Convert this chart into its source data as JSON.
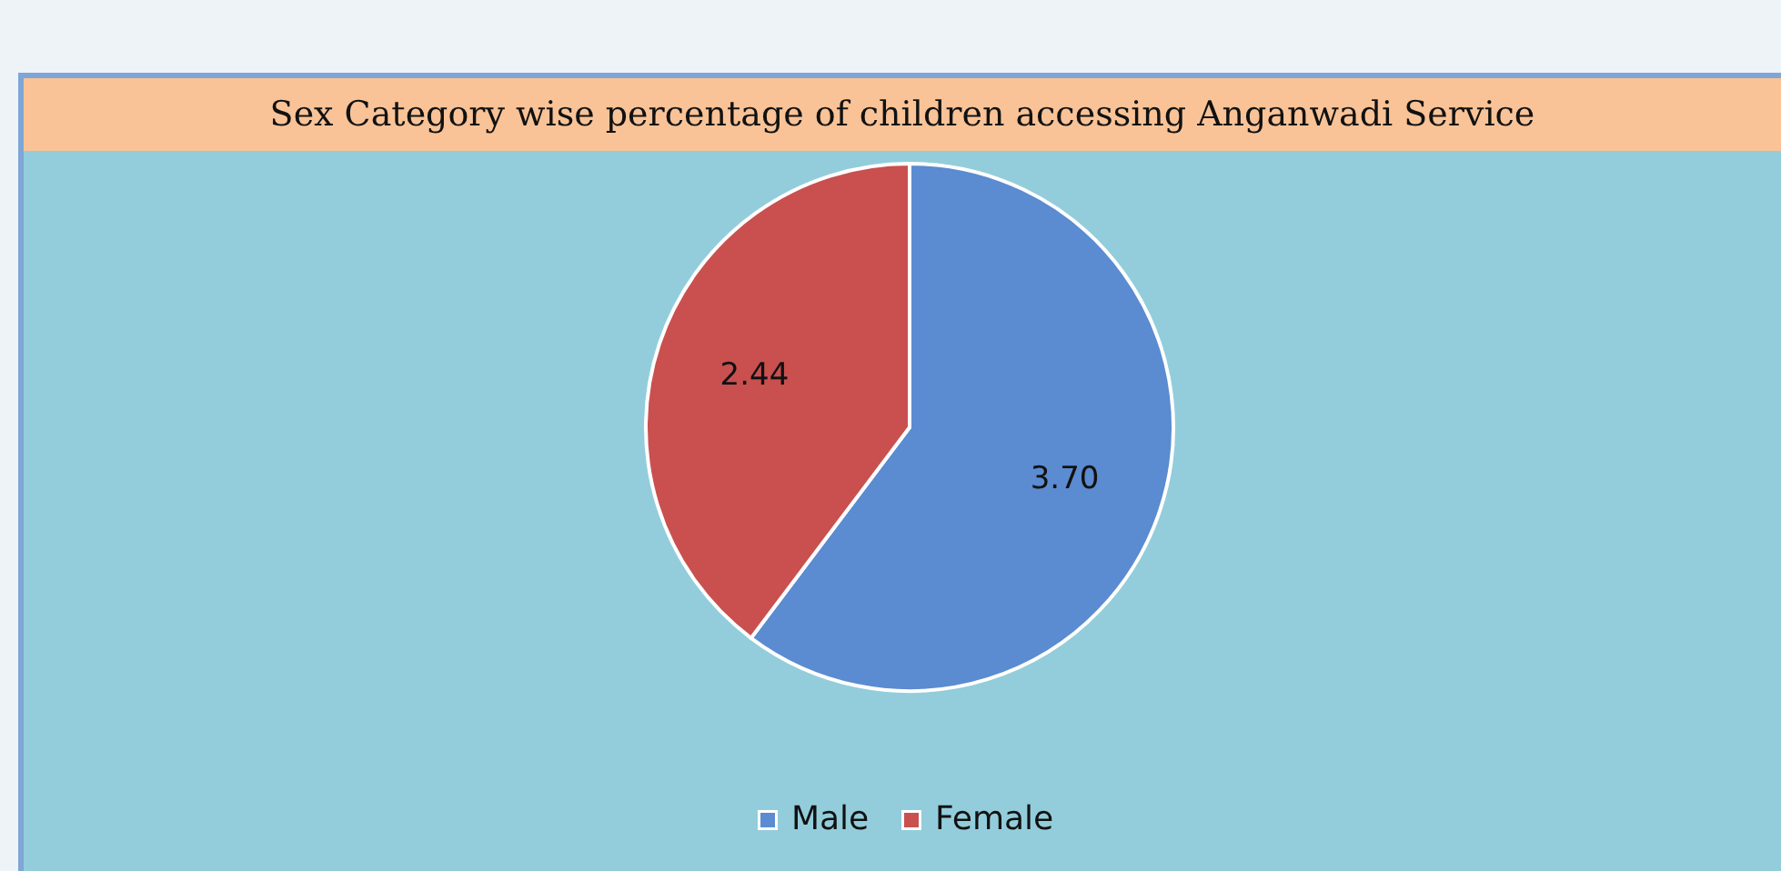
{
  "chart_data": {
    "type": "pie",
    "title": "Sex Category wise percentage of children accessing Anganwadi Service",
    "categories": [
      "Male",
      "Female"
    ],
    "values": [
      3.7,
      2.44
    ],
    "colors": [
      "#5b8bd0",
      "#c9504f"
    ],
    "value_labels": [
      "3.70",
      "2.44"
    ],
    "legend": "bottom"
  }
}
